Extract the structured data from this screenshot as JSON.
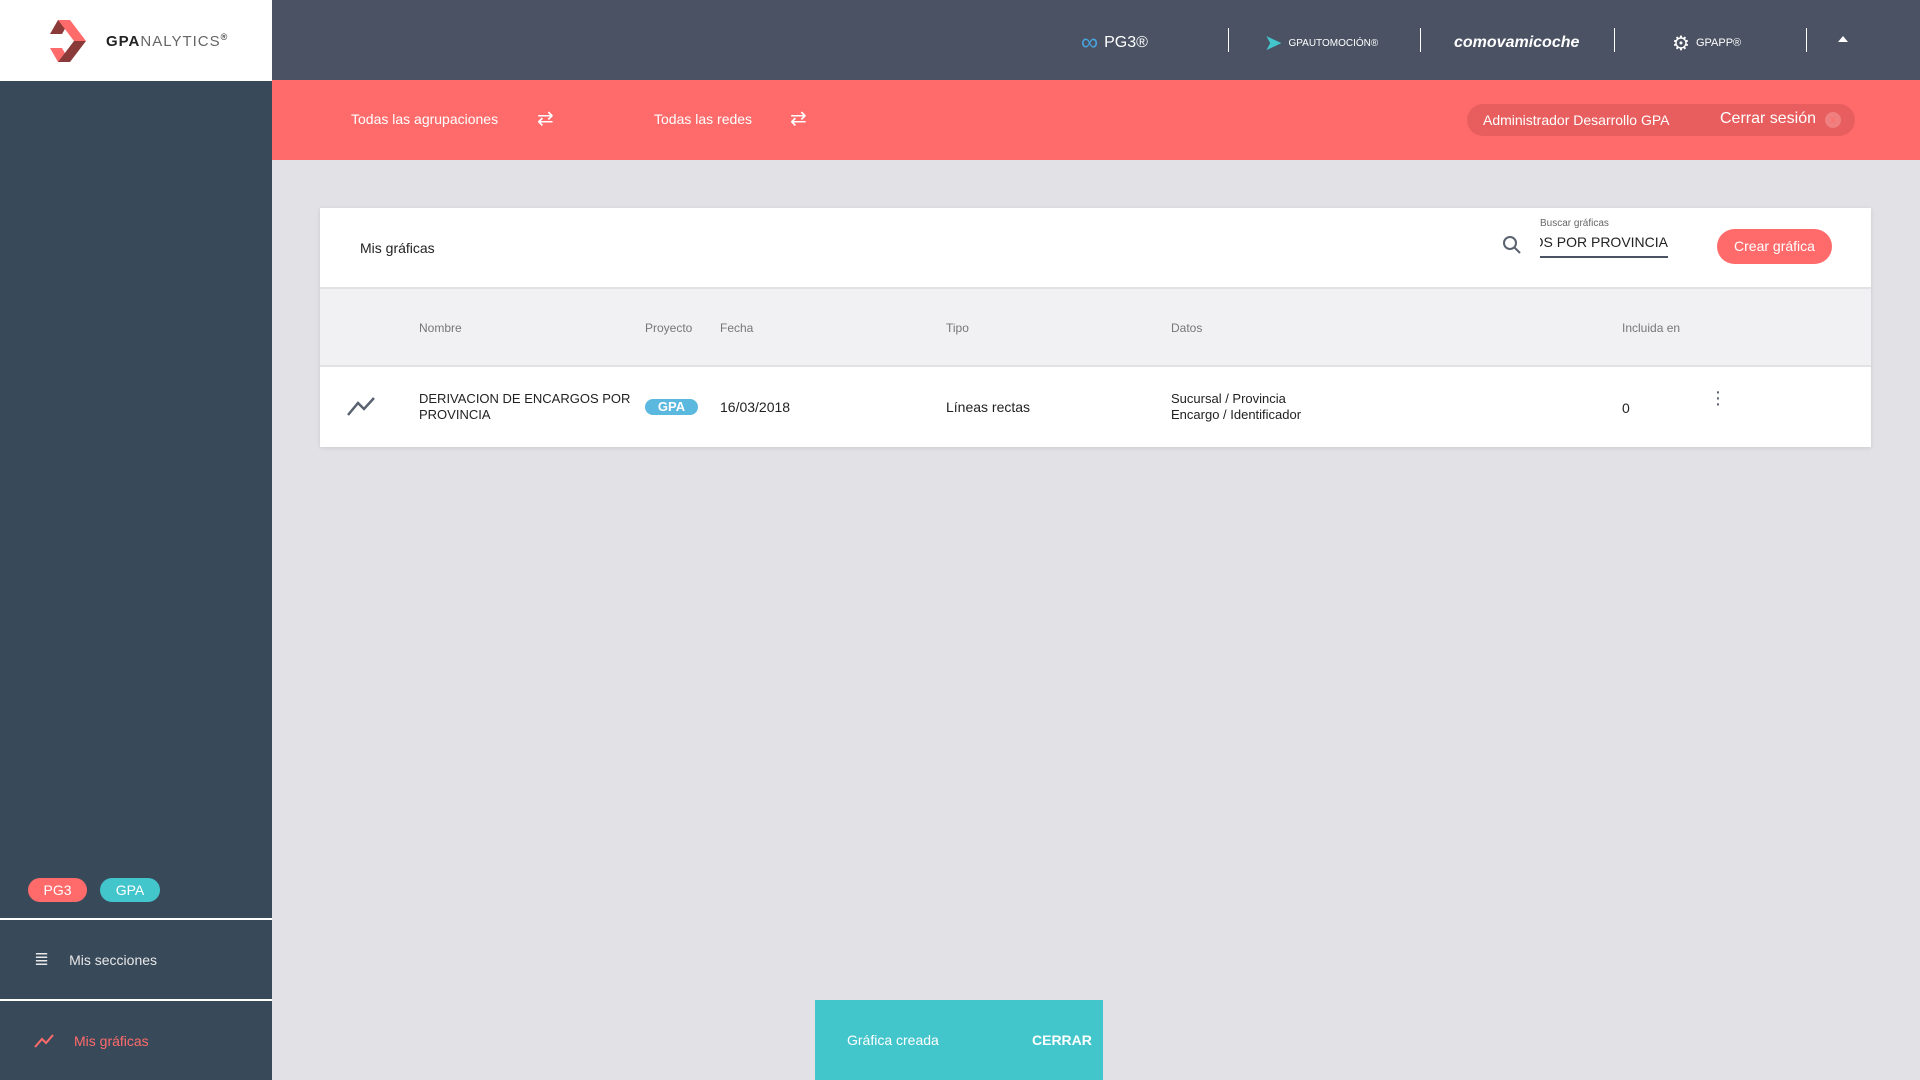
{
  "logo": {
    "name": "GPANALYTICS",
    "part1": "GPA",
    "part2": "NALYTICS",
    "reg": "®"
  },
  "topbar": {
    "brands": [
      "PG3®",
      "GPAUTOMOCIÓN®",
      "comovamicoche",
      "GPAPP®"
    ],
    "collapse_icon": "caret-up-icon"
  },
  "filters": {
    "agrupaciones": "Todas las agrupaciones",
    "redes": "Todas las redes"
  },
  "user": {
    "name": "Administrador Desarrollo GPA",
    "logout": "Cerrar sesión"
  },
  "sidebar": {
    "tags": [
      "PG3",
      "GPA"
    ],
    "items": [
      {
        "label": "Mis secciones",
        "icon": "list-icon"
      },
      {
        "label": "Mis gráficas",
        "icon": "line-chart-icon",
        "active": true
      }
    ]
  },
  "card": {
    "title": "Mis gráficas",
    "search": {
      "label": "Buscar gráficas",
      "value": "DERIVACION DE ENCARGOS POR PROVINCIA"
    },
    "create_label": "Crear gráfica",
    "columns": [
      "Nombre",
      "Proyecto",
      "Fecha",
      "Tipo",
      "Datos",
      "Incluida en"
    ],
    "rows": [
      {
        "nombre": "DERIVACION DE ENCARGOS POR PROVINCIA",
        "proyecto": "GPA",
        "fecha": "16/03/2018",
        "tipo": "Líneas rectas",
        "datos": [
          "Sucursal / Provincia",
          "Encargo / Identificador"
        ],
        "incluida": "0"
      }
    ]
  },
  "toast": {
    "message": "Gráfica creada",
    "action": "CERRAR"
  },
  "colors": {
    "accent": "#ff6b6b",
    "teal": "#43c5cc",
    "sidebar": "#38495a",
    "topbar": "#4a5263",
    "badge": "#5bb8de"
  }
}
